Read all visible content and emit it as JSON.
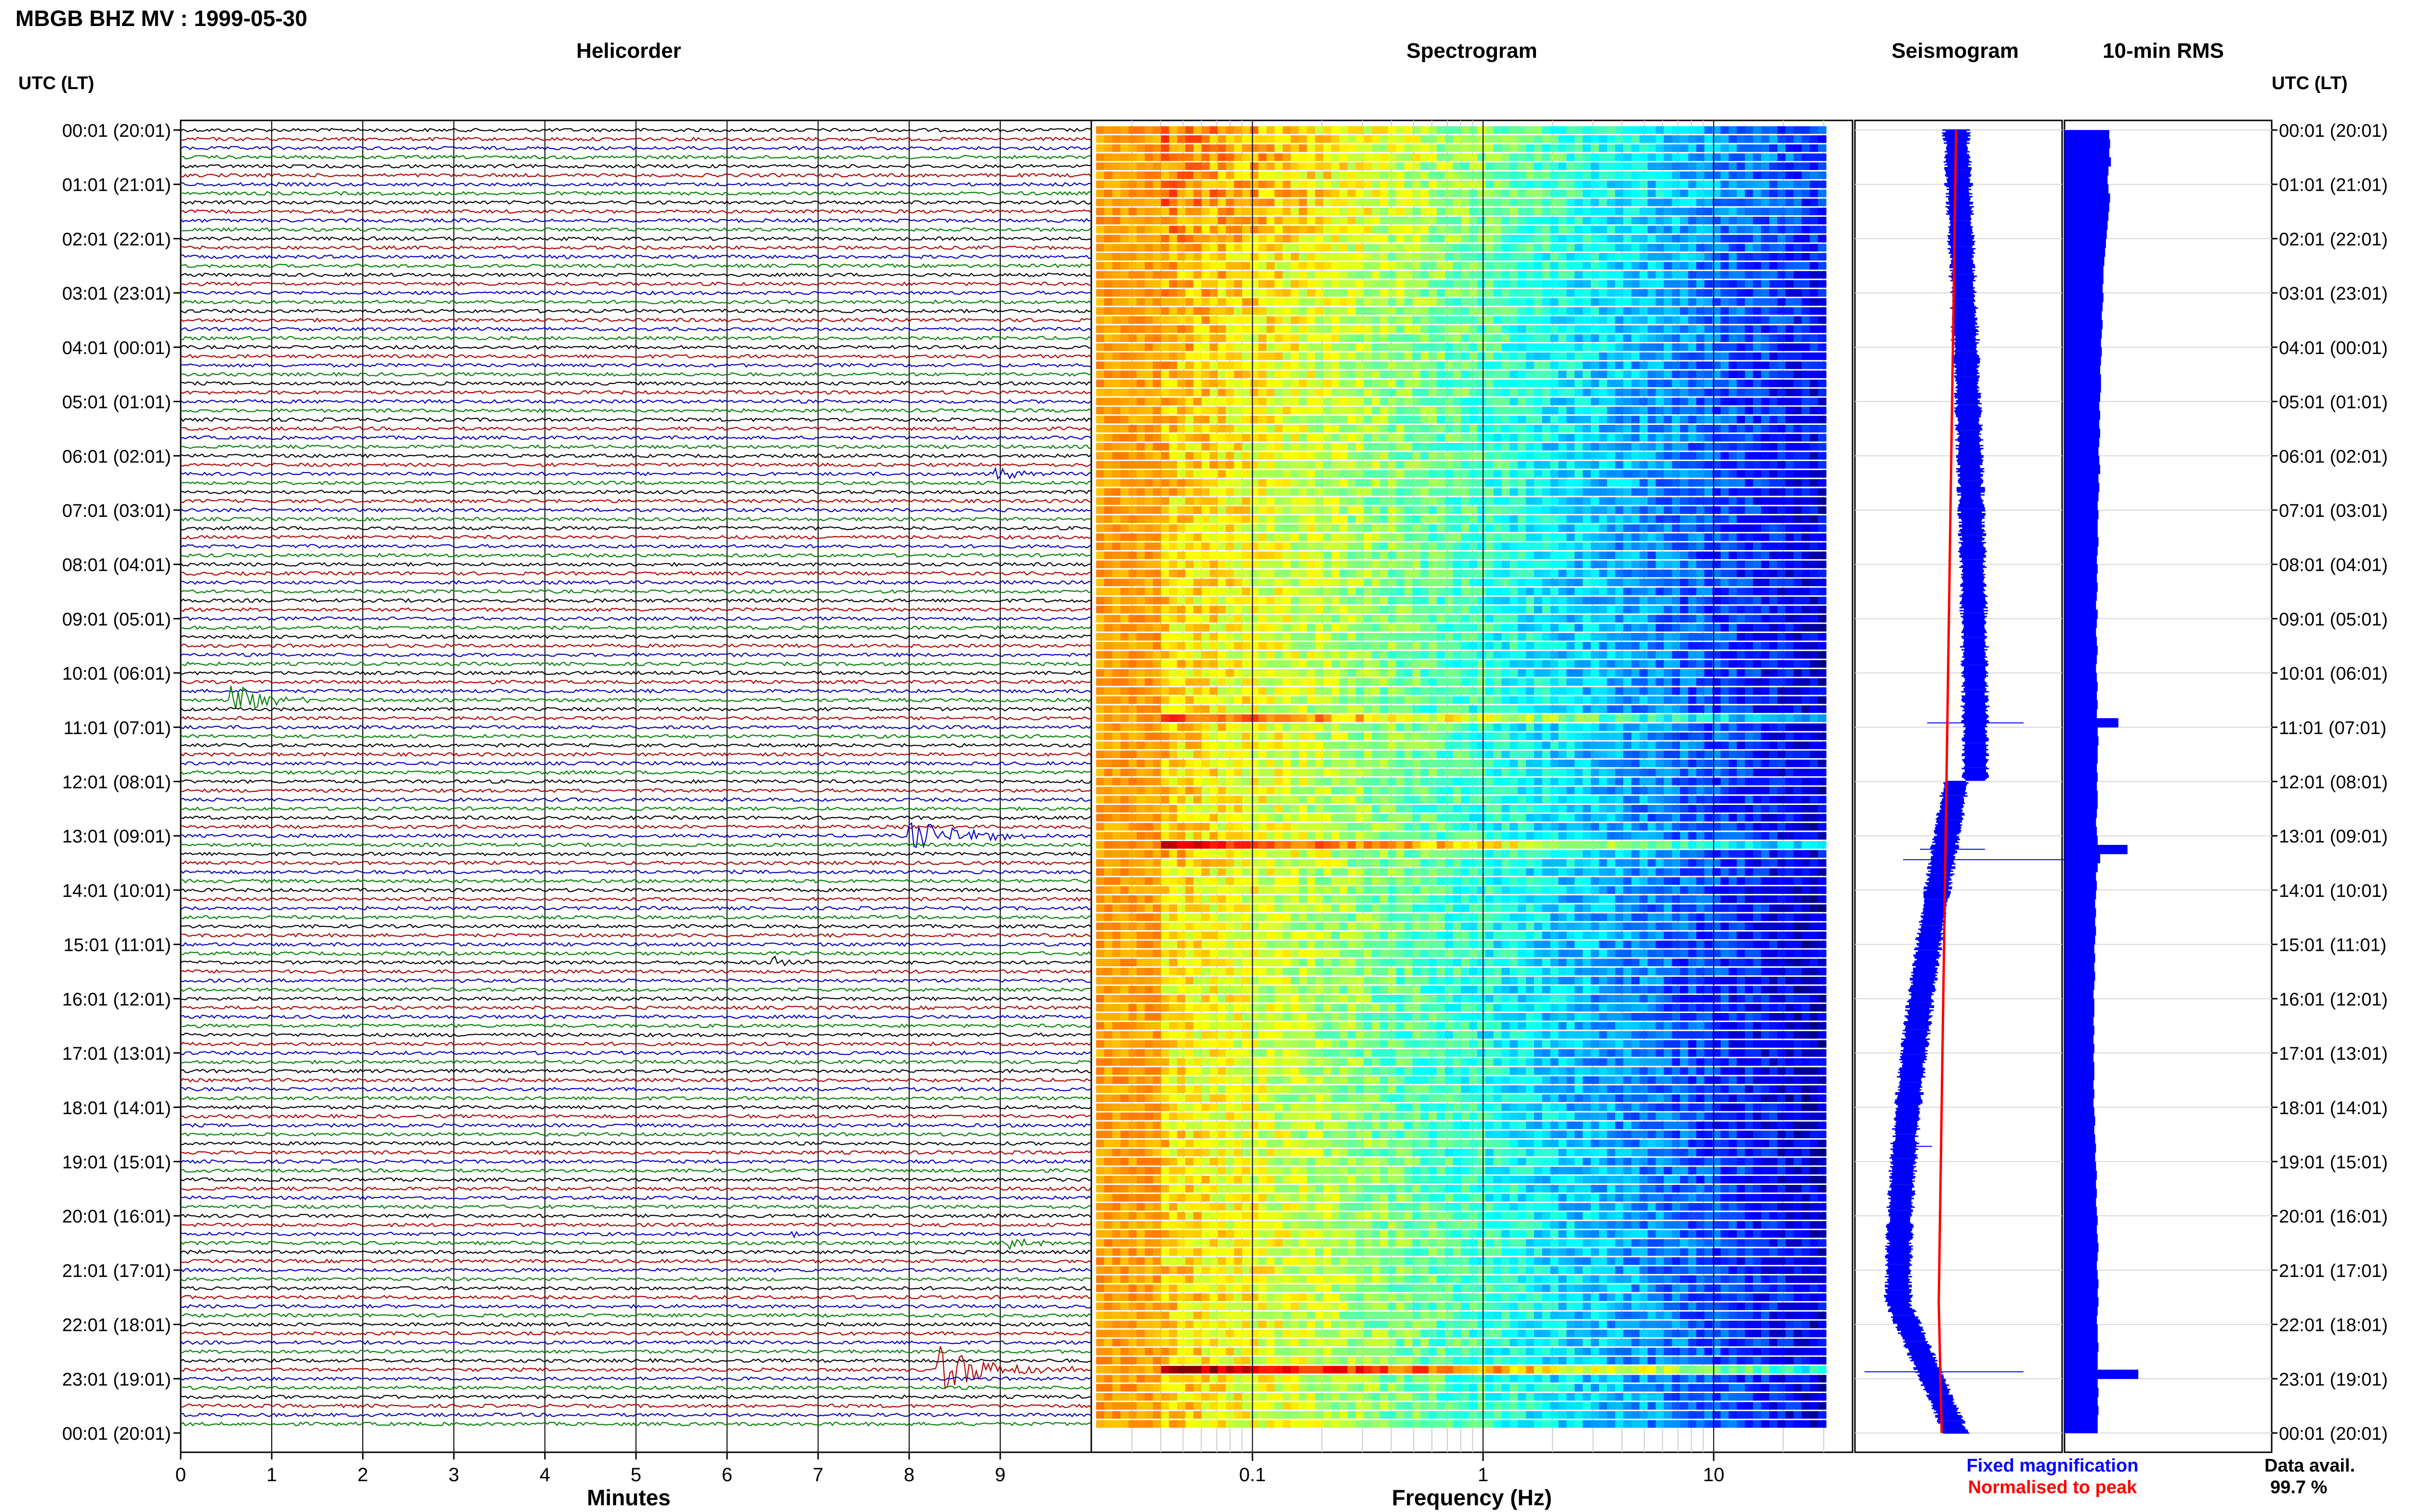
{
  "header": {
    "title": "MBGB BHZ MV : 1999-05-30"
  },
  "panels": {
    "helicorder": "Helicorder",
    "spectrogram": "Spectrogram",
    "seismogram": "Seismogram",
    "rms": "10-min RMS"
  },
  "axes": {
    "utc_header_left": "UTC (LT)",
    "utc_header_right": "UTC (LT)",
    "minutes_label": "Minutes",
    "frequency_label": "Frequency (Hz)"
  },
  "legend": {
    "fixed": "Fixed magnification",
    "normalised": "Normalised to peak",
    "fixed_color": "#0000ff",
    "normalised_color": "#ff0000"
  },
  "availability": {
    "label": "Data avail.",
    "value": "99.7 %"
  },
  "chart_data": [
    {
      "type": "line",
      "panel": "Helicorder",
      "xlabel": "Minutes",
      "x_ticks": [
        "0",
        "1",
        "2",
        "3",
        "4",
        "5",
        "6",
        "7",
        "8",
        "9"
      ],
      "xlim": [
        0,
        10
      ],
      "rows_per_hour": 6,
      "trace_colors": [
        "#000000",
        "#b00000",
        "#0000c0",
        "#008000"
      ],
      "time_labels": [
        "00:01 (20:01)",
        "01:01 (21:01)",
        "02:01 (22:01)",
        "03:01 (23:01)",
        "04:01 (00:01)",
        "05:01 (01:01)",
        "06:01 (02:01)",
        "07:01 (03:01)",
        "08:01 (04:01)",
        "09:01 (05:01)",
        "10:01 (06:01)",
        "11:01 (07:01)",
        "12:01 (08:01)",
        "13:01 (09:01)",
        "14:01 (10:01)",
        "15:01 (11:01)",
        "16:01 (12:01)",
        "17:01 (13:01)",
        "18:01 (14:01)",
        "19:01 (15:01)",
        "20:01 (16:01)",
        "21:01 (17:01)",
        "22:01 (18:01)",
        "23:01 (19:01)",
        "00:01 (20:01)"
      ],
      "events": [
        {
          "row": 63,
          "minute": 0.55,
          "amplitude": 3.0,
          "duration_min": 0.9
        },
        {
          "row": 78,
          "minute": 8.0,
          "amplitude": 2.2,
          "duration_min": 1.8
        },
        {
          "row": 92,
          "minute": 6.5,
          "amplitude": 1.0,
          "duration_min": 0.6
        },
        {
          "row": 38,
          "minute": 8.9,
          "amplitude": 1.2,
          "duration_min": 0.8
        },
        {
          "row": 122,
          "minute": 6.7,
          "amplitude": 0.8,
          "duration_min": 0.5
        },
        {
          "row": 123,
          "minute": 9.1,
          "amplitude": 0.9,
          "duration_min": 0.7
        },
        {
          "row": 137,
          "minute": 8.3,
          "amplitude": 3.5,
          "duration_min": 1.7
        }
      ]
    },
    {
      "type": "heatmap",
      "panel": "Spectrogram",
      "xlabel": "Frequency (Hz)",
      "x_scale": "log",
      "xlim": [
        0.02,
        40
      ],
      "x_ticks": [
        "0.1",
        "1",
        "10"
      ],
      "colormap": "jet"
    },
    {
      "type": "line",
      "panel": "Seismogram",
      "series": [
        {
          "name": "Fixed magnification",
          "color": "#0000ff"
        },
        {
          "name": "Normalised to peak",
          "color": "#ff0000"
        }
      ]
    },
    {
      "type": "bar",
      "panel": "10-min RMS",
      "orientation": "horizontal",
      "color": "#0000ff",
      "values": [
        0.54,
        0.55,
        0.54,
        0.56,
        0.53,
        0.52,
        0.53,
        0.55,
        0.54,
        0.53,
        0.52,
        0.51,
        0.5,
        0.49,
        0.48,
        0.47,
        0.47,
        0.46,
        0.47,
        0.46,
        0.45,
        0.46,
        0.45,
        0.44,
        0.45,
        0.44,
        0.43,
        0.44,
        0.44,
        0.43,
        0.42,
        0.43,
        0.42,
        0.43,
        0.42,
        0.41,
        0.42,
        0.43,
        0.41,
        0.42,
        0.41,
        0.4,
        0.41,
        0.4,
        0.4,
        0.41,
        0.4,
        0.39,
        0.4,
        0.39,
        0.4,
        0.39,
        0.38,
        0.4,
        0.39,
        0.38,
        0.39,
        0.4,
        0.39,
        0.38,
        0.39,
        0.4,
        0.39,
        0.4,
        0.39,
        0.65,
        0.4,
        0.41,
        0.4,
        0.4,
        0.39,
        0.4,
        0.39,
        0.4,
        0.4,
        0.39,
        0.38,
        0.39,
        0.4,
        0.76,
        0.43,
        0.4,
        0.38,
        0.39,
        0.38,
        0.37,
        0.38,
        0.37,
        0.38,
        0.37,
        0.36,
        0.37,
        0.36,
        0.37,
        0.36,
        0.35,
        0.36,
        0.36,
        0.35,
        0.36,
        0.35,
        0.36,
        0.35,
        0.36,
        0.36,
        0.35,
        0.36,
        0.35,
        0.36,
        0.37,
        0.36,
        0.37,
        0.38,
        0.37,
        0.38,
        0.39,
        0.38,
        0.39,
        0.38,
        0.39,
        0.4,
        0.39,
        0.4,
        0.41,
        0.4,
        0.39,
        0.4,
        0.41,
        0.4,
        0.41,
        0.4,
        0.39,
        0.4,
        0.4,
        0.41,
        0.4,
        0.4,
        0.89,
        0.4,
        0.41,
        0.4,
        0.41,
        0.4,
        0.4
      ]
    }
  ]
}
